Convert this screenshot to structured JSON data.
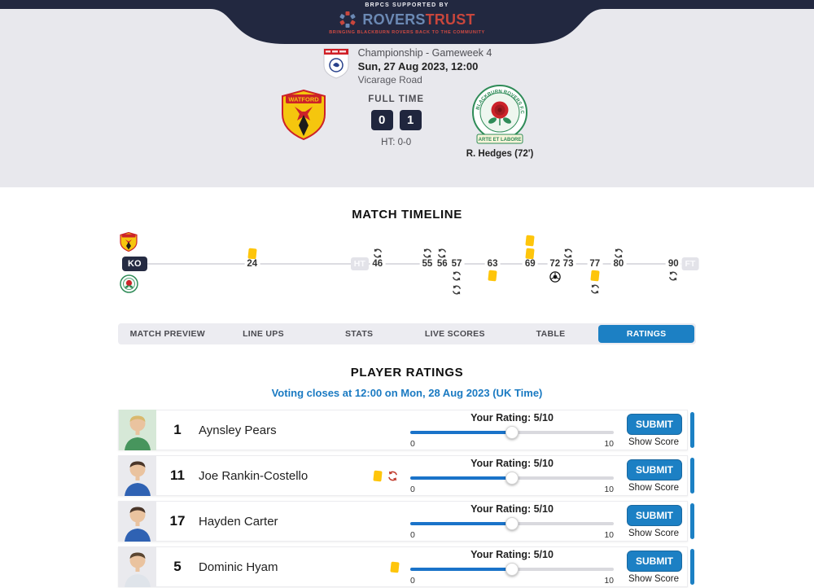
{
  "colors": {
    "accent": "#1c80c4",
    "banner_bg": "#222840",
    "score_box": "#20263e",
    "yellow_card": "#fec50b",
    "logo_blue": "#6b89b4",
    "logo_red": "#c8463c"
  },
  "banner": {
    "supported_by": "BRPCS SUPPORTED BY",
    "logo_rovers": "ROVERS",
    "logo_trust": "TRUST",
    "tagline": "BRINGING BLACKBURN ROVERS BACK TO THE COMMUNITY"
  },
  "match_header": {
    "competition": "Championship - Gameweek 4",
    "datetime": "Sun, 27 Aug 2023, 12:00",
    "venue": "Vicarage Road",
    "status_label": "FULL TIME",
    "home_team": "Watford",
    "away_team": "Blackburn Rovers",
    "home_crest_text": "WATFORD",
    "away_ring_text": "BLACKBURN ROVERS F.C.",
    "away_motto": "ARTE ET LABORE",
    "home_score": "0",
    "away_score": "1",
    "ht_score": "HT: 0-0",
    "away_scorer": "R. Hedges (72')"
  },
  "timeline": {
    "title": "MATCH TIMELINE",
    "ko_label": "KO",
    "ht_label": "HT",
    "ft_label": "FT",
    "ht_pos_pct": 41.8,
    "ft_pos_pct": 99.0,
    "minutes": [
      {
        "label": "24",
        "pos_pct": 23.2
      },
      {
        "label": "46",
        "pos_pct": 44.9
      },
      {
        "label": "55",
        "pos_pct": 53.5
      },
      {
        "label": "56",
        "pos_pct": 56.1
      },
      {
        "label": "57",
        "pos_pct": 58.6
      },
      {
        "label": "63",
        "pos_pct": 64.8
      },
      {
        "label": "69",
        "pos_pct": 71.3
      },
      {
        "label": "72",
        "pos_pct": 75.6
      },
      {
        "label": "73",
        "pos_pct": 77.9
      },
      {
        "label": "77",
        "pos_pct": 82.5
      },
      {
        "label": "80",
        "pos_pct": 86.6
      },
      {
        "label": "90",
        "pos_pct": 96.1
      }
    ],
    "home_events": [
      {
        "minute": "24",
        "pos_pct": 23.2,
        "icons": [
          "yellow-card"
        ]
      },
      {
        "minute": "46",
        "pos_pct": 44.9,
        "icons": [
          "substitution"
        ]
      },
      {
        "minute": "55",
        "pos_pct": 53.5,
        "icons": [
          "substitution"
        ]
      },
      {
        "minute": "56",
        "pos_pct": 56.1,
        "icons": [
          "substitution"
        ]
      },
      {
        "minute": "69",
        "pos_pct": 71.3,
        "icons": [
          "yellow-card",
          "yellow-card"
        ]
      },
      {
        "minute": "73",
        "pos_pct": 77.9,
        "icons": [
          "substitution"
        ]
      },
      {
        "minute": "80",
        "pos_pct": 86.6,
        "icons": [
          "substitution"
        ]
      }
    ],
    "away_events": [
      {
        "minute": "57",
        "pos_pct": 58.6,
        "icons": [
          "substitution",
          "substitution"
        ]
      },
      {
        "minute": "63",
        "pos_pct": 64.8,
        "icons": [
          "yellow-card"
        ]
      },
      {
        "minute": "72",
        "pos_pct": 75.6,
        "icons": [
          "goal"
        ]
      },
      {
        "minute": "77",
        "pos_pct": 82.5,
        "icons": [
          "yellow-card",
          "substitution"
        ]
      },
      {
        "minute": "90",
        "pos_pct": 96.1,
        "icons": [
          "substitution"
        ]
      }
    ]
  },
  "tabs": [
    {
      "label": "MATCH PREVIEW",
      "active": false
    },
    {
      "label": "LINE UPS",
      "active": false
    },
    {
      "label": "STATS",
      "active": false
    },
    {
      "label": "LIVE SCORES",
      "active": false
    },
    {
      "label": "TABLE",
      "active": false
    },
    {
      "label": "RATINGS",
      "active": true
    }
  ],
  "ratings": {
    "title": "PLAYER RATINGS",
    "voting_note": "Voting closes at 12:00 on Mon, 28 Aug 2023 (UK Time)",
    "submit_label": "SUBMIT",
    "show_score_label": "Show Score",
    "slider_min": "0",
    "slider_max": "10",
    "players": [
      {
        "number": "1",
        "name": "Aynsley Pears",
        "rating_label": "Your Rating: 5/10",
        "rating_value": 5,
        "rating_max": 10,
        "icons": []
      },
      {
        "number": "11",
        "name": "Joe Rankin-Costello",
        "rating_label": "Your Rating: 5/10",
        "rating_value": 5,
        "rating_max": 10,
        "icons": [
          "yellow-card",
          "substituted-off"
        ]
      },
      {
        "number": "17",
        "name": "Hayden Carter",
        "rating_label": "Your Rating: 5/10",
        "rating_value": 5,
        "rating_max": 10,
        "icons": []
      },
      {
        "number": "5",
        "name": "Dominic Hyam",
        "rating_label": "Your Rating: 5/10",
        "rating_value": 5,
        "rating_max": 10,
        "icons": [
          "yellow-card"
        ]
      }
    ]
  }
}
